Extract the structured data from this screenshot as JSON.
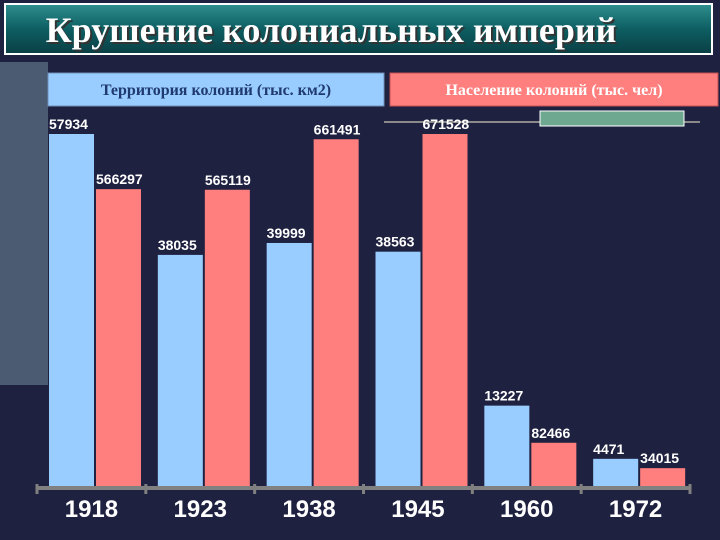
{
  "chart_data": {
    "type": "bar",
    "title": "Крушение колониальных империй",
    "categories": [
      "1918",
      "1923",
      "1938",
      "1945",
      "1960",
      "1972"
    ],
    "series": [
      {
        "name": "Территория колоний (тыс. км2)",
        "color": "#99ccff",
        "values": [
          57934,
          38035,
          39999,
          38563,
          13227,
          4471
        ]
      },
      {
        "name": "Население колоний (тыс. чел)",
        "color": "#ff7f7f",
        "values": [
          566297,
          565119,
          661491,
          671528,
          82466,
          34015
        ]
      }
    ]
  }
}
